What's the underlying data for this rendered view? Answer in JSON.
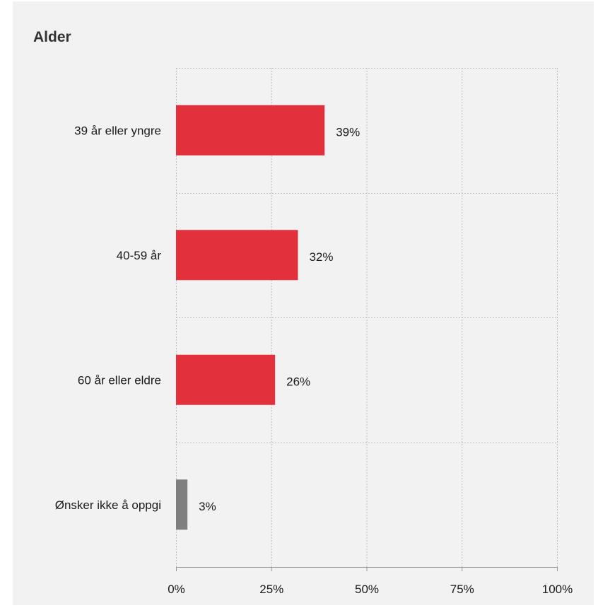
{
  "chart_data": {
    "type": "bar",
    "orientation": "horizontal",
    "title": "Alder",
    "categories": [
      "39 år eller yngre",
      "40-59 år",
      "60 år eller eldre",
      "Ønsker ikke å oppgi"
    ],
    "values": [
      39,
      32,
      26,
      3
    ],
    "value_labels": [
      "39%",
      "32%",
      "26%",
      "3%"
    ],
    "bar_colors": [
      "#e3303d",
      "#e3303d",
      "#e3303d",
      "#7f7f7f"
    ],
    "xlim": [
      0,
      100
    ],
    "x_ticks": [
      0,
      25,
      50,
      75,
      100
    ],
    "x_tick_labels": [
      "0%",
      "25%",
      "50%",
      "75%",
      "100%"
    ],
    "xlabel": "",
    "ylabel": "",
    "grid": true,
    "background": "#f2f2f2"
  }
}
